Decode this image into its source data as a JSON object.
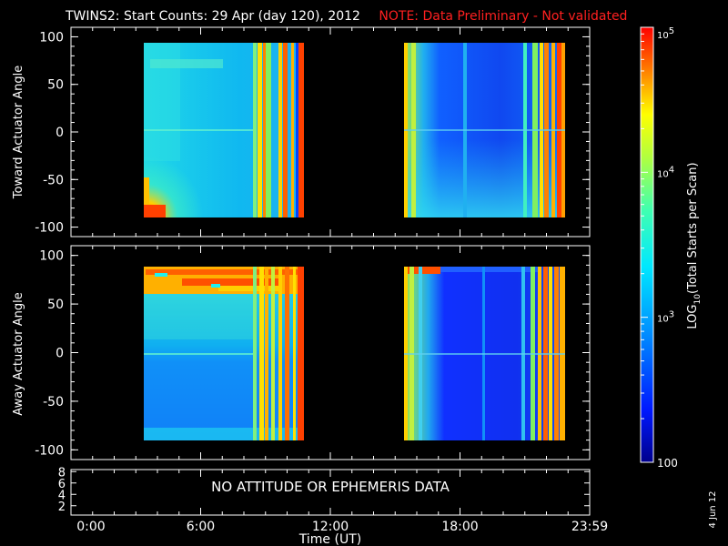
{
  "header": {
    "title": "TWINS2: Start Counts: 29 Apr (day 120), 2012",
    "note": "NOTE: Data Preliminary - Not validated",
    "note_color": "#ff2020"
  },
  "footer": {
    "date_stamp": "4 Jun 12"
  },
  "chart_data": [
    {
      "type": "heatmap",
      "panel": "top",
      "ylabel": "Toward Actuator Angle",
      "ylim": [
        -110,
        110
      ],
      "yticks": [
        100,
        50,
        0,
        -50,
        -100
      ],
      "xlim_hours": [
        0,
        24
      ],
      "coverage": [
        {
          "start": "3:20",
          "end": "10:45",
          "angle_min": -90,
          "angle_max": 90
        },
        {
          "start": "15:20",
          "end": "23:30",
          "angle_min": -90,
          "angle_max": 90
        }
      ],
      "value_scale": "log10"
    },
    {
      "type": "heatmap",
      "panel": "middle",
      "ylabel": "Away Actuator Angle",
      "ylim": [
        -110,
        110
      ],
      "yticks": [
        100,
        50,
        0,
        -50,
        -100
      ],
      "xlim_hours": [
        0,
        24
      ],
      "coverage": [
        {
          "start": "3:20",
          "end": "10:45",
          "angle_min": -90,
          "angle_max": 90
        },
        {
          "start": "15:20",
          "end": "23:30",
          "angle_min": -90,
          "angle_max": 90
        }
      ],
      "value_scale": "log10"
    },
    {
      "type": "line",
      "panel": "bottom",
      "yticks": [
        8,
        6,
        4,
        2
      ],
      "annotation": "NO ATTITUDE OR EPHEMERIS DATA"
    }
  ],
  "x_axis": {
    "label": "Time (UT)",
    "ticks": [
      "0:00",
      "6:00",
      "12:00",
      "18:00",
      "23:59"
    ]
  },
  "colorbar": {
    "label": "LOG10(Total Starts per Scan)",
    "label_main": "LOG",
    "label_sub": "10",
    "label_rest": "(Total Starts per Scan)",
    "range": [
      100,
      100000
    ],
    "ticks": [
      {
        "value": 100000,
        "base": "10",
        "exp": "5"
      },
      {
        "value": 10000,
        "base": "10",
        "exp": "4"
      },
      {
        "value": 1000,
        "base": "10",
        "exp": "3"
      },
      {
        "value": 100,
        "label": "100"
      }
    ]
  }
}
